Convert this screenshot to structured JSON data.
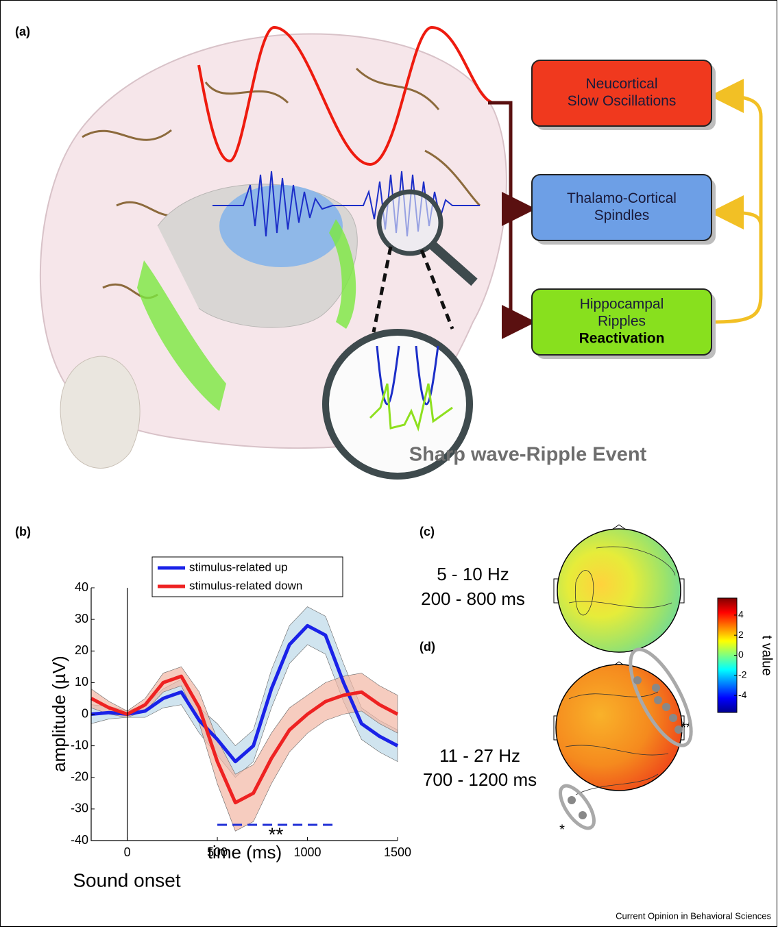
{
  "panel_a": {
    "label": "(a)",
    "boxes": [
      {
        "lines": [
          "Neucortical",
          "Slow Oscillations"
        ]
      },
      {
        "lines": [
          "Thalamo-Cortical",
          "Spindles"
        ]
      },
      {
        "lines": [
          "Hippocampal",
          "Ripples"
        ],
        "bold": "Reactivation"
      }
    ],
    "caption": "Sharp wave-Ripple Event"
  },
  "chart_data": {
    "type": "line",
    "label": "(b)",
    "xlabel": "time (ms)",
    "ylabel": "amplitude (µV)",
    "onset": {
      "label": "Sound onset",
      "x": 0
    },
    "significance": {
      "label": "**",
      "x": [
        500,
        1150
      ],
      "y": -35,
      "color": "#1f2fd6"
    },
    "x": [
      -200,
      -100,
      0,
      100,
      200,
      300,
      400,
      500,
      600,
      700,
      800,
      900,
      1000,
      1100,
      1200,
      1300,
      1400,
      1500
    ],
    "series": [
      {
        "name": "stimulus-related up",
        "color": "#1a22e8",
        "band": "#bcd8e8",
        "values": [
          0,
          0.5,
          0,
          1,
          5,
          7,
          -2,
          -8,
          -15,
          -10,
          8,
          22,
          28,
          25,
          10,
          -3,
          -7,
          -10
        ],
        "error": [
          3,
          2,
          1,
          2,
          3,
          4,
          4,
          5,
          5,
          5,
          6,
          6,
          6,
          6,
          6,
          5,
          5,
          5
        ]
      },
      {
        "name": "stimulus-related down",
        "color": "#ee2222",
        "band": "#f2b7a4",
        "values": [
          5,
          2,
          0,
          3,
          10,
          12,
          2,
          -15,
          -28,
          -25,
          -14,
          -5,
          0,
          4,
          6,
          7,
          3,
          0
        ],
        "error": [
          3,
          2,
          1,
          2,
          3,
          3,
          5,
          7,
          9,
          9,
          8,
          7,
          6,
          6,
          6,
          6,
          6,
          6
        ]
      }
    ],
    "xlim": [
      -200,
      1500
    ],
    "ylim": [
      -40,
      40
    ],
    "xticks": [
      0,
      500,
      1000,
      1500
    ],
    "yticks": [
      -40,
      -30,
      -20,
      -10,
      0,
      10,
      20,
      30,
      40
    ]
  },
  "panel_c": {
    "label": "(c)",
    "lines": [
      "5 - 10 Hz",
      "200 - 800 ms"
    ]
  },
  "panel_d": {
    "label": "(d)",
    "lines": [
      "11 - 27 Hz",
      "700 - 1200 ms"
    ],
    "marks": [
      "***",
      "*"
    ]
  },
  "colorbar": {
    "label": "t value",
    "lim": [
      -5.7,
      5.7
    ],
    "ticks": [
      -4,
      -2,
      0,
      2,
      4
    ]
  },
  "credit": "Current Opinion in Behavioral Sciences"
}
